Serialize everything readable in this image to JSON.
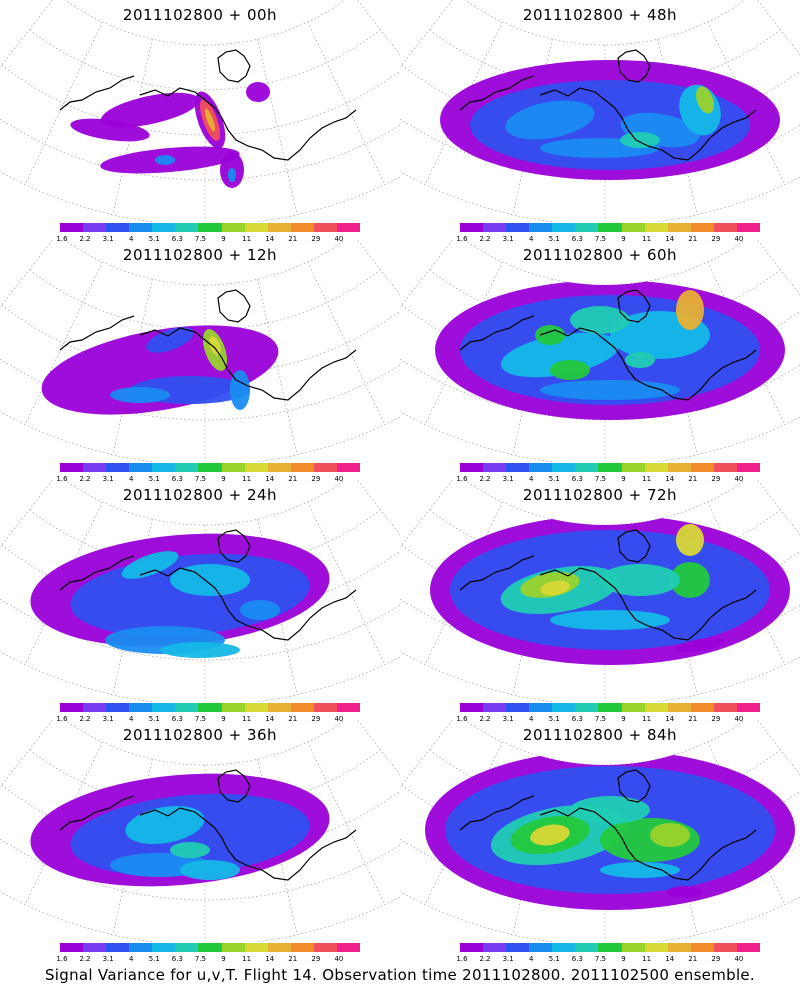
{
  "colorbar": {
    "labels": [
      "1.6",
      "2.2",
      "3.1",
      "4",
      "5.1",
      "6.3",
      "7.5",
      "9",
      "11",
      "14",
      "21",
      "29",
      "40"
    ],
    "colors": [
      "#9a00d8",
      "#7a3cf0",
      "#3050f0",
      "#1a8cf0",
      "#14b8e6",
      "#22ccb4",
      "#24c83c",
      "#9ad22c",
      "#d8d836",
      "#e8b034",
      "#f08c2c",
      "#f0505a",
      "#f0208c"
    ]
  },
  "panels": [
    {
      "title": "2011102800 + 00h"
    },
    {
      "title": "2011102800 + 48h"
    },
    {
      "title": "2011102800 + 12h"
    },
    {
      "title": "2011102800 + 60h"
    },
    {
      "title": "2011102800 + 24h"
    },
    {
      "title": "2011102800 + 72h"
    },
    {
      "title": "2011102800 + 36h"
    },
    {
      "title": "2011102800 + 84h"
    }
  ],
  "caption": "Signal Variance for u,v,T. Flight 14. Observation time 2011102800. 2011102500 ensemble."
}
